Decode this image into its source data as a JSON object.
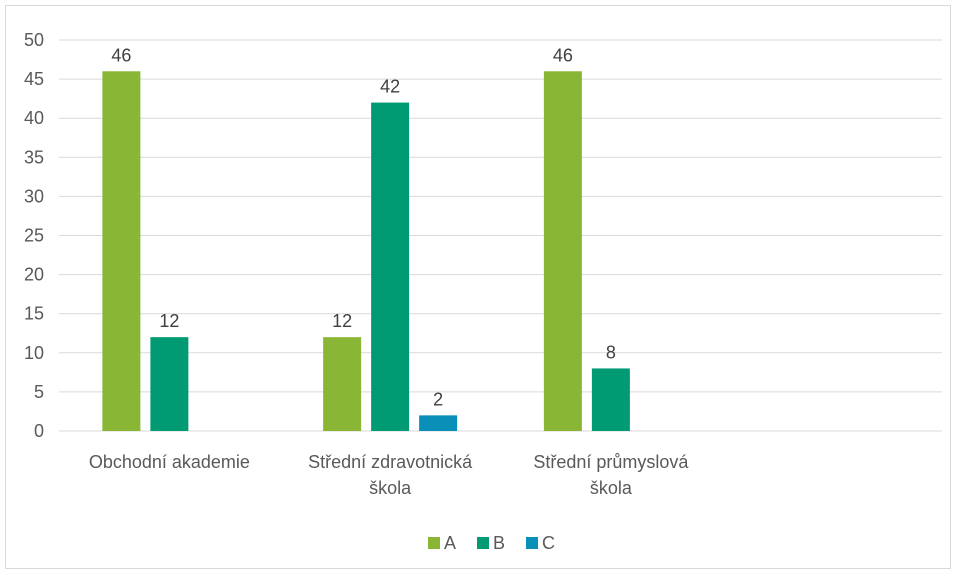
{
  "chart_data": {
    "type": "bar",
    "title": "",
    "xlabel": "",
    "ylabel": "",
    "ylim": [
      0,
      50
    ],
    "yticks": [
      0,
      5,
      10,
      15,
      20,
      25,
      30,
      35,
      40,
      45,
      50
    ],
    "grid": true,
    "legend_position": "bottom",
    "categories": [
      [
        "Obchodní akademie"
      ],
      [
        "Střední zdravotnická",
        "škola"
      ],
      [
        "Střední průmyslová",
        "škola"
      ],
      [
        ""
      ]
    ],
    "series": [
      {
        "name": "A",
        "color": "#8ab636",
        "values": [
          46,
          12,
          46,
          null
        ]
      },
      {
        "name": "B",
        "color": "#009a73",
        "values": [
          12,
          42,
          8,
          null
        ]
      },
      {
        "name": "C",
        "color": "#0a8fb8",
        "values": [
          null,
          2,
          null,
          null
        ]
      }
    ]
  }
}
